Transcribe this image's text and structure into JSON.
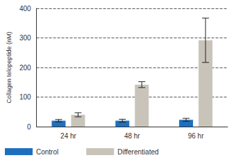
{
  "chart_data": {
    "type": "bar",
    "y_label": "Collagen telopeptide (nM)",
    "categories": [
      "24 hr",
      "48 hr",
      "96 hr"
    ],
    "series": [
      {
        "name": "Control",
        "color": "#1f6fbf",
        "values": [
          20,
          20,
          23
        ],
        "errors": [
          4,
          5,
          5
        ]
      },
      {
        "name": "Differentiated",
        "color": "#c9c4b9",
        "values": [
          40,
          142,
          292
        ],
        "errors": [
          7,
          10,
          75
        ]
      }
    ],
    "ylim": [
      0,
      400
    ],
    "yticks": [
      0,
      100,
      200,
      300,
      400
    ],
    "grid": true,
    "legend": "bottom left"
  }
}
